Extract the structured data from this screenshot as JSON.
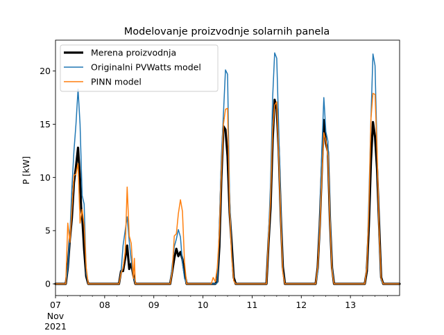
{
  "chart_data": {
    "type": "line",
    "title": "Modelovanje proizvodnje solarnih panela",
    "xlabel": "",
    "ylabel": "P [kW]",
    "xlim": [
      "2021-11-07 00:00",
      "2021-11-14 00:00"
    ],
    "ylim": [
      -1.1,
      22.9
    ],
    "grid": false,
    "legend_position": "top-left",
    "x_ticks": [
      {
        "day": 0,
        "label": "07"
      },
      {
        "day": 1,
        "label": "08"
      },
      {
        "day": 2,
        "label": "09"
      },
      {
        "day": 3,
        "label": "10"
      },
      {
        "day": 4,
        "label": "11"
      },
      {
        "day": 5,
        "label": "12"
      },
      {
        "day": 6,
        "label": "13"
      }
    ],
    "x_tick_extra": [
      "Nov",
      "2021"
    ],
    "y_ticks": [
      0,
      5,
      10,
      15,
      20
    ],
    "series": [
      {
        "name": "Merena proizvodnja",
        "color": "#000000",
        "width": 3.2,
        "points": [
          [
            "2021-11-07 00:00",
            0
          ],
          [
            "2021-11-07 05:00",
            0
          ],
          [
            "2021-11-07 06:00",
            1.5
          ],
          [
            "2021-11-07 07:00",
            4.2
          ],
          [
            "2021-11-07 08:00",
            6.2
          ],
          [
            "2021-11-07 09:00",
            9.5
          ],
          [
            "2021-11-07 10:00",
            11.0
          ],
          [
            "2021-11-07 11:00",
            12.8
          ],
          [
            "2021-11-07 12:00",
            9.8
          ],
          [
            "2021-11-07 12:30",
            7.2
          ],
          [
            "2021-11-07 13:00",
            6.4
          ],
          [
            "2021-11-07 14:00",
            3.2
          ],
          [
            "2021-11-07 15:00",
            0.7
          ],
          [
            "2021-11-07 16:00",
            0
          ],
          [
            "2021-11-08 07:00",
            0
          ],
          [
            "2021-11-08 08:00",
            1.2
          ],
          [
            "2021-11-08 09:00",
            1.2
          ],
          [
            "2021-11-08 10:00",
            2.4
          ],
          [
            "2021-11-08 11:00",
            3.6
          ],
          [
            "2021-11-08 12:00",
            1.4
          ],
          [
            "2021-11-08 13:00",
            1.9
          ],
          [
            "2021-11-08 14:00",
            0.8
          ],
          [
            "2021-11-08 15:00",
            0
          ],
          [
            "2021-11-09 08:00",
            0
          ],
          [
            "2021-11-09 09:00",
            1.2
          ],
          [
            "2021-11-09 10:00",
            2.4
          ],
          [
            "2021-11-09 11:00",
            3.3
          ],
          [
            "2021-11-09 12:00",
            2.6
          ],
          [
            "2021-11-09 13:00",
            3.0
          ],
          [
            "2021-11-09 14:00",
            2.3
          ],
          [
            "2021-11-09 15:00",
            1.0
          ],
          [
            "2021-11-09 16:00",
            0
          ],
          [
            "2021-11-10 04:00",
            0
          ],
          [
            "2021-11-10 06:00",
            0
          ],
          [
            "2021-11-10 07:00",
            0.2
          ],
          [
            "2021-11-10 08:00",
            3.5
          ],
          [
            "2021-11-10 09:00",
            10.0
          ],
          [
            "2021-11-10 10:00",
            14.8
          ],
          [
            "2021-11-10 11:00",
            14.5
          ],
          [
            "2021-11-10 12:00",
            12.0
          ],
          [
            "2021-11-10 13:00",
            6.7
          ],
          [
            "2021-11-10 14:00",
            3.8
          ],
          [
            "2021-11-10 15:00",
            0.6
          ],
          [
            "2021-11-10 16:00",
            0
          ],
          [
            "2021-11-11 07:00",
            0
          ],
          [
            "2021-11-11 08:00",
            3.8
          ],
          [
            "2021-11-11 09:00",
            7.2
          ],
          [
            "2021-11-11 10:00",
            13.5
          ],
          [
            "2021-11-11 11:00",
            17.3
          ],
          [
            "2021-11-11 12:00",
            16.4
          ],
          [
            "2021-11-11 13:00",
            12.5
          ],
          [
            "2021-11-11 14:00",
            6.3
          ],
          [
            "2021-11-11 15:00",
            1.6
          ],
          [
            "2021-11-11 16:00",
            0
          ],
          [
            "2021-11-12 07:00",
            0
          ],
          [
            "2021-11-12 08:00",
            1.5
          ],
          [
            "2021-11-12 09:00",
            5.5
          ],
          [
            "2021-11-12 10:00",
            10.6
          ],
          [
            "2021-11-12 11:00",
            15.4
          ],
          [
            "2021-11-12 12:00",
            13.2
          ],
          [
            "2021-11-12 13:00",
            12.4
          ],
          [
            "2021-11-12 14:00",
            6.0
          ],
          [
            "2021-11-12 15:00",
            1.5
          ],
          [
            "2021-11-12 16:00",
            0
          ],
          [
            "2021-11-13 07:00",
            0
          ],
          [
            "2021-11-13 08:00",
            1.2
          ],
          [
            "2021-11-13 09:00",
            5.5
          ],
          [
            "2021-11-13 10:00",
            11.5
          ],
          [
            "2021-11-13 11:00",
            15.2
          ],
          [
            "2021-11-13 12:00",
            13.8
          ],
          [
            "2021-11-13 13:00",
            10.8
          ],
          [
            "2021-11-13 14:00",
            5.5
          ],
          [
            "2021-11-13 15:00",
            0.6
          ],
          [
            "2021-11-13 16:00",
            0
          ],
          [
            "2021-11-14 00:00",
            0
          ]
        ]
      },
      {
        "name": "Originalni PVWatts model",
        "color": "#1f77b4",
        "width": 1.5,
        "points": [
          [
            "2021-11-07 00:00",
            0
          ],
          [
            "2021-11-07 05:00",
            0
          ],
          [
            "2021-11-07 06:00",
            1.5
          ],
          [
            "2021-11-07 07:00",
            4.5
          ],
          [
            "2021-11-07 08:00",
            9.0
          ],
          [
            "2021-11-07 09:00",
            12.5
          ],
          [
            "2021-11-07 10:00",
            15.0
          ],
          [
            "2021-11-07 11:00",
            18.3
          ],
          [
            "2021-11-07 12:00",
            15.0
          ],
          [
            "2021-11-07 13:00",
            8.3
          ],
          [
            "2021-11-07 14:00",
            7.5
          ],
          [
            "2021-11-07 15:00",
            1.0
          ],
          [
            "2021-11-07 16:00",
            0
          ],
          [
            "2021-11-08 07:00",
            0
          ],
          [
            "2021-11-08 08:00",
            1.1
          ],
          [
            "2021-11-08 09:00",
            3.6
          ],
          [
            "2021-11-08 10:00",
            5.0
          ],
          [
            "2021-11-08 11:00",
            6.3
          ],
          [
            "2021-11-08 12:00",
            4.0
          ],
          [
            "2021-11-08 13:00",
            2.2
          ],
          [
            "2021-11-08 14:00",
            0.7
          ],
          [
            "2021-11-08 15:00",
            0
          ],
          [
            "2021-11-09 08:00",
            0
          ],
          [
            "2021-11-09 09:00",
            1.8
          ],
          [
            "2021-11-09 10:00",
            3.5
          ],
          [
            "2021-11-09 11:00",
            4.2
          ],
          [
            "2021-11-09 12:00",
            5.1
          ],
          [
            "2021-11-09 13:00",
            4.4
          ],
          [
            "2021-11-09 14:00",
            2.0
          ],
          [
            "2021-11-09 15:00",
            0.5
          ],
          [
            "2021-11-09 16:00",
            0
          ],
          [
            "2021-11-10 04:00",
            0
          ],
          [
            "2021-11-10 06:00",
            0
          ],
          [
            "2021-11-10 07:00",
            0.1
          ],
          [
            "2021-11-10 08:00",
            5.0
          ],
          [
            "2021-11-10 09:00",
            12.0
          ],
          [
            "2021-11-10 10:00",
            16.0
          ],
          [
            "2021-11-10 11:00",
            20.1
          ],
          [
            "2021-11-10 12:00",
            19.7
          ],
          [
            "2021-11-10 13:00",
            8.0
          ],
          [
            "2021-11-10 14:00",
            3.0
          ],
          [
            "2021-11-10 15:00",
            0.3
          ],
          [
            "2021-11-10 16:00",
            0
          ],
          [
            "2021-11-11 07:00",
            0
          ],
          [
            "2021-11-11 08:00",
            4.5
          ],
          [
            "2021-11-11 09:00",
            9.5
          ],
          [
            "2021-11-11 10:00",
            17.5
          ],
          [
            "2021-11-11 11:00",
            21.7
          ],
          [
            "2021-11-11 12:00",
            21.2
          ],
          [
            "2021-11-11 13:00",
            14.5
          ],
          [
            "2021-11-11 14:00",
            7.0
          ],
          [
            "2021-11-11 15:00",
            1.2
          ],
          [
            "2021-11-11 16:00",
            0
          ],
          [
            "2021-11-12 07:00",
            0
          ],
          [
            "2021-11-12 08:00",
            1.0
          ],
          [
            "2021-11-12 09:00",
            6.0
          ],
          [
            "2021-11-12 10:00",
            12.5
          ],
          [
            "2021-11-12 11:00",
            17.5
          ],
          [
            "2021-11-12 12:00",
            14.3
          ],
          [
            "2021-11-12 13:00",
            13.4
          ],
          [
            "2021-11-12 14:00",
            6.8
          ],
          [
            "2021-11-12 15:00",
            1.6
          ],
          [
            "2021-11-12 16:00",
            0
          ],
          [
            "2021-11-13 07:00",
            0
          ],
          [
            "2021-11-13 08:00",
            1.5
          ],
          [
            "2021-11-13 09:00",
            8.0
          ],
          [
            "2021-11-13 10:00",
            15.5
          ],
          [
            "2021-11-13 11:00",
            21.6
          ],
          [
            "2021-11-13 12:00",
            20.5
          ],
          [
            "2021-11-13 13:00",
            12.7
          ],
          [
            "2021-11-13 14:00",
            5.0
          ],
          [
            "2021-11-13 15:00",
            0.3
          ],
          [
            "2021-11-13 16:00",
            0
          ],
          [
            "2021-11-14 00:00",
            0
          ]
        ]
      },
      {
        "name": "PINN model",
        "color": "#ff7f0e",
        "width": 1.5,
        "points": [
          [
            "2021-11-07 00:00",
            0
          ],
          [
            "2021-11-07 05:00",
            0
          ],
          [
            "2021-11-07 06:00",
            5.7
          ],
          [
            "2021-11-07 07:00",
            3.9
          ],
          [
            "2021-11-07 08:00",
            7.0
          ],
          [
            "2021-11-07 09:00",
            10.2
          ],
          [
            "2021-11-07 10:00",
            10.3
          ],
          [
            "2021-11-07 11:00",
            11.3
          ],
          [
            "2021-11-07 12:00",
            5.7
          ],
          [
            "2021-11-07 13:00",
            7.0
          ],
          [
            "2021-11-07 14:00",
            5.5
          ],
          [
            "2021-11-07 15:00",
            1.5
          ],
          [
            "2021-11-07 16:00",
            0
          ],
          [
            "2021-11-08 07:00",
            0
          ],
          [
            "2021-11-08 08:00",
            1.0
          ],
          [
            "2021-11-08 09:00",
            1.5
          ],
          [
            "2021-11-08 10:00",
            3.0
          ],
          [
            "2021-11-08 11:00",
            9.1
          ],
          [
            "2021-11-08 12:00",
            4.5
          ],
          [
            "2021-11-08 13:00",
            3.8
          ],
          [
            "2021-11-08 14:00",
            0.5
          ],
          [
            "2021-11-08 14:30",
            2.4
          ],
          [
            "2021-11-08 15:00",
            0
          ],
          [
            "2021-11-09 08:00",
            0
          ],
          [
            "2021-11-09 09:00",
            1.2
          ],
          [
            "2021-11-09 10:00",
            4.5
          ],
          [
            "2021-11-09 11:00",
            4.7
          ],
          [
            "2021-11-09 12:00",
            6.6
          ],
          [
            "2021-11-09 13:00",
            7.9
          ],
          [
            "2021-11-09 14:00",
            6.8
          ],
          [
            "2021-11-09 15:00",
            2.0
          ],
          [
            "2021-11-09 16:00",
            0
          ],
          [
            "2021-11-10 04:00",
            0
          ],
          [
            "2021-11-10 05:00",
            0.6
          ],
          [
            "2021-11-10 06:00",
            0.2
          ],
          [
            "2021-11-10 07:00",
            1.5
          ],
          [
            "2021-11-10 08:00",
            4.7
          ],
          [
            "2021-11-10 09:00",
            10.5
          ],
          [
            "2021-11-10 10:00",
            15.0
          ],
          [
            "2021-11-10 11:00",
            16.4
          ],
          [
            "2021-11-10 12:00",
            16.5
          ],
          [
            "2021-11-10 13:00",
            7.0
          ],
          [
            "2021-11-10 14:00",
            2.5
          ],
          [
            "2021-11-10 15:00",
            0.3
          ],
          [
            "2021-11-10 16:00",
            0
          ],
          [
            "2021-11-11 07:00",
            0
          ],
          [
            "2021-11-11 08:00",
            4.0
          ],
          [
            "2021-11-11 09:00",
            8.0
          ],
          [
            "2021-11-11 10:00",
            14.5
          ],
          [
            "2021-11-11 11:00",
            16.8
          ],
          [
            "2021-11-11 12:00",
            17.1
          ],
          [
            "2021-11-11 13:00",
            12.0
          ],
          [
            "2021-11-11 14:00",
            5.8
          ],
          [
            "2021-11-11 15:00",
            1.0
          ],
          [
            "2021-11-11 16:00",
            0
          ],
          [
            "2021-11-12 07:00",
            0
          ],
          [
            "2021-11-12 08:00",
            1.5
          ],
          [
            "2021-11-12 09:00",
            5.0
          ],
          [
            "2021-11-12 10:00",
            10.0
          ],
          [
            "2021-11-12 11:00",
            14.2
          ],
          [
            "2021-11-12 12:00",
            13.4
          ],
          [
            "2021-11-12 13:00",
            12.0
          ],
          [
            "2021-11-12 14:00",
            5.8
          ],
          [
            "2021-11-12 15:00",
            1.2
          ],
          [
            "2021-11-12 16:00",
            0
          ],
          [
            "2021-11-13 07:00",
            0
          ],
          [
            "2021-11-13 08:00",
            1.5
          ],
          [
            "2021-11-13 09:00",
            7.0
          ],
          [
            "2021-11-13 10:00",
            15.5
          ],
          [
            "2021-11-13 11:00",
            17.9
          ],
          [
            "2021-11-13 12:00",
            17.8
          ],
          [
            "2021-11-13 13:00",
            12.5
          ],
          [
            "2021-11-13 14:00",
            5.0
          ],
          [
            "2021-11-13 15:00",
            0.5
          ],
          [
            "2021-11-13 16:00",
            0
          ],
          [
            "2021-11-14 00:00",
            0
          ]
        ]
      }
    ]
  }
}
